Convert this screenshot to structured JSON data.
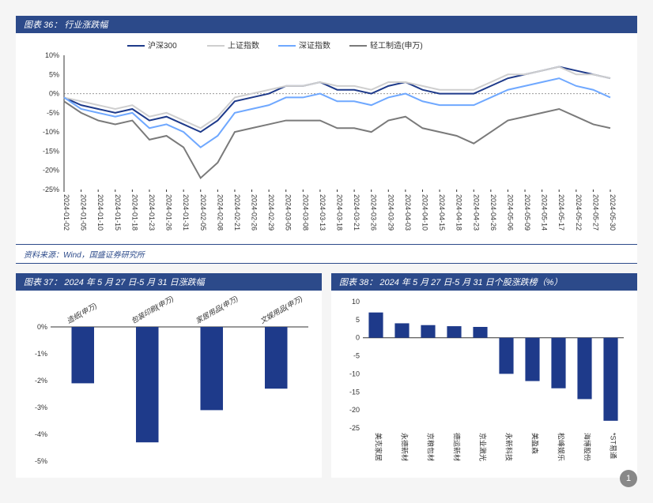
{
  "chart36": {
    "title_prefix": "图表 36：",
    "title": "行业涨跌幅",
    "source": "资料来源：Wind，国盛证券研究所",
    "type": "line",
    "legend_fontsize": 10,
    "axis_fontsize": 9,
    "background_color": "#ffffff",
    "grid_color": "#cccccc",
    "zero_line_dash": "2,2",
    "ylim": [
      -25,
      10
    ],
    "ytick_step": 5,
    "ytick_suffix": "%",
    "x_labels": [
      "2024-01-02",
      "2024-01-05",
      "2024-01-10",
      "2024-01-15",
      "2024-01-18",
      "2024-01-23",
      "2024-01-26",
      "2024-01-31",
      "2024-02-05",
      "2024-02-08",
      "2024-02-21",
      "2024-02-26",
      "2024-02-29",
      "2024-03-05",
      "2024-03-08",
      "2024-03-13",
      "2024-03-18",
      "2024-03-21",
      "2024-03-26",
      "2024-03-29",
      "2024-04-03",
      "2024-04-10",
      "2024-04-15",
      "2024-04-18",
      "2024-04-23",
      "2024-04-26",
      "2024-05-06",
      "2024-05-09",
      "2024-05-14",
      "2024-05-17",
      "2024-05-22",
      "2024-05-27",
      "2024-05-30"
    ],
    "series": [
      {
        "name": "沪深300",
        "color": "#1e3a8a",
        "width": 2,
        "values": [
          -1,
          -3,
          -4,
          -5,
          -4,
          -7,
          -6,
          -8,
          -10,
          -7,
          -2,
          -1,
          0,
          2,
          2,
          3,
          1,
          1,
          0,
          2,
          3,
          1,
          0,
          0,
          0,
          2,
          4,
          5,
          6,
          7,
          6,
          5,
          4
        ]
      },
      {
        "name": "上证指数",
        "color": "#cfcfcf",
        "width": 2,
        "values": [
          -1,
          -2,
          -3,
          -4,
          -3,
          -6,
          -5,
          -7,
          -9,
          -6,
          -1,
          0,
          1,
          2,
          2,
          3,
          2,
          2,
          1,
          3,
          3,
          2,
          1,
          1,
          1,
          3,
          5,
          5,
          6,
          7,
          5,
          5,
          4
        ]
      },
      {
        "name": "深证指数",
        "color": "#6fa8ff",
        "width": 2,
        "values": [
          -1,
          -4,
          -5,
          -6,
          -5,
          -9,
          -8,
          -10,
          -14,
          -11,
          -5,
          -4,
          -3,
          -1,
          -1,
          0,
          -2,
          -2,
          -3,
          -1,
          0,
          -2,
          -3,
          -3,
          -3,
          -1,
          1,
          2,
          3,
          4,
          2,
          1,
          -1
        ]
      },
      {
        "name": "轻工制造(申万)",
        "color": "#7a7a7a",
        "width": 2,
        "values": [
          -2,
          -5,
          -7,
          -8,
          -7,
          -12,
          -11,
          -14,
          -22,
          -18,
          -10,
          -9,
          -8,
          -7,
          -7,
          -7,
          -9,
          -9,
          -10,
          -7,
          -6,
          -9,
          -10,
          -11,
          -13,
          -10,
          -7,
          -6,
          -5,
          -4,
          -6,
          -8,
          -9
        ]
      },
      {
        "name": "",
        "color": "#7ec8e3",
        "width": 2,
        "values": []
      }
    ]
  },
  "chart37": {
    "title_prefix": "图表 37：",
    "title": "2024 年 5 月 27 日-5 月 31 日涨跌幅",
    "type": "bar",
    "bar_color": "#1e3a8a",
    "axis_fontsize": 9,
    "background_color": "#ffffff",
    "ylim": [
      -5,
      0
    ],
    "ytick_step": 1,
    "ytick_suffix": "%",
    "categories": [
      "造纸(申万)",
      "包装印刷(申万)",
      "家居用品(申万)",
      "文娱用品(申万)"
    ],
    "values": [
      -2.1,
      -4.3,
      -3.1,
      -2.3
    ],
    "bar_width": 0.35
  },
  "chart38": {
    "title_prefix": "图表 38：",
    "title": "2024 年 5 月 27 日-5 月 31 日个股涨跌榜（%）",
    "type": "bar",
    "bar_color": "#1e3a8a",
    "axis_fontsize": 9,
    "background_color": "#ffffff",
    "ylim": [
      -25,
      10
    ],
    "ytick_step": 5,
    "categories": [
      "美克家居",
      "永德新材",
      "京粮包材",
      "德运新材",
      "京业激光",
      "永新科技",
      "美盈森",
      "松峰娱乐",
      "海博股份",
      "*ST易通"
    ],
    "values": [
      7,
      4,
      3.5,
      3.2,
      3,
      -10,
      -12,
      -14,
      -17,
      -23
    ],
    "bar_width": 0.55
  },
  "page_marker": "1"
}
